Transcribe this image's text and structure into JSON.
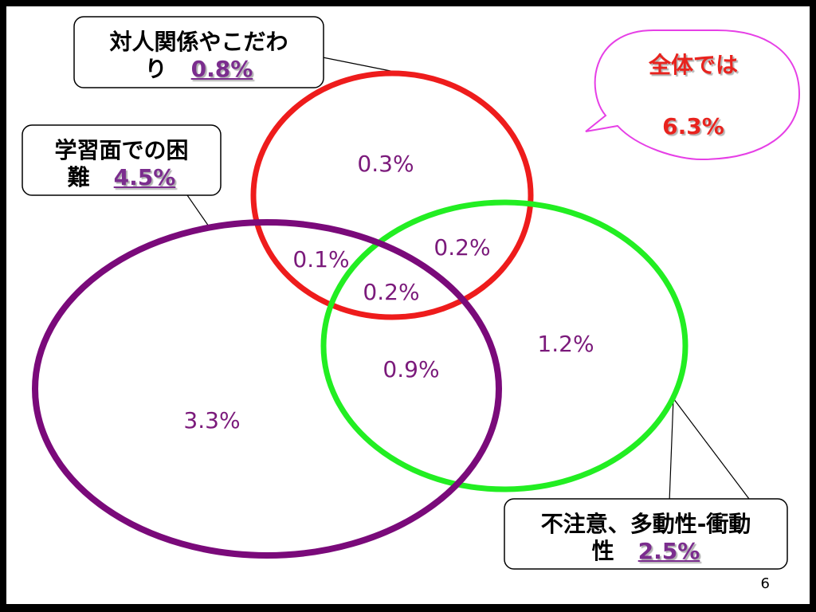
{
  "callouts": {
    "social": {
      "label_line1": "対人関係やこだわ",
      "label_line2": "り",
      "value": "0.8%"
    },
    "learning": {
      "label_line1": "学習面での困",
      "label_line2": "難",
      "value": "4.5%"
    },
    "adhd": {
      "label_line1": "不注意、多動性-衝動",
      "label_line2": "性",
      "value": "2.5%"
    }
  },
  "total": {
    "title": "全体では",
    "value": "6.3%"
  },
  "regions": {
    "social_only": "0.3%",
    "social_learning": "0.1%",
    "social_adhd": "0.2%",
    "all_three": "0.2%",
    "adhd_only": "1.2%",
    "learning_adhd": "0.9%",
    "learning_only": "3.3%"
  },
  "page_number": "6",
  "colors": {
    "social_circle": "#ee1c1c",
    "adhd_circle": "#22ee22",
    "learning_circle": "#7a0a7a",
    "region_text": "#7b1a7b",
    "total_text": "#e8231e",
    "total_bubble_border": "#e63fe6"
  }
}
